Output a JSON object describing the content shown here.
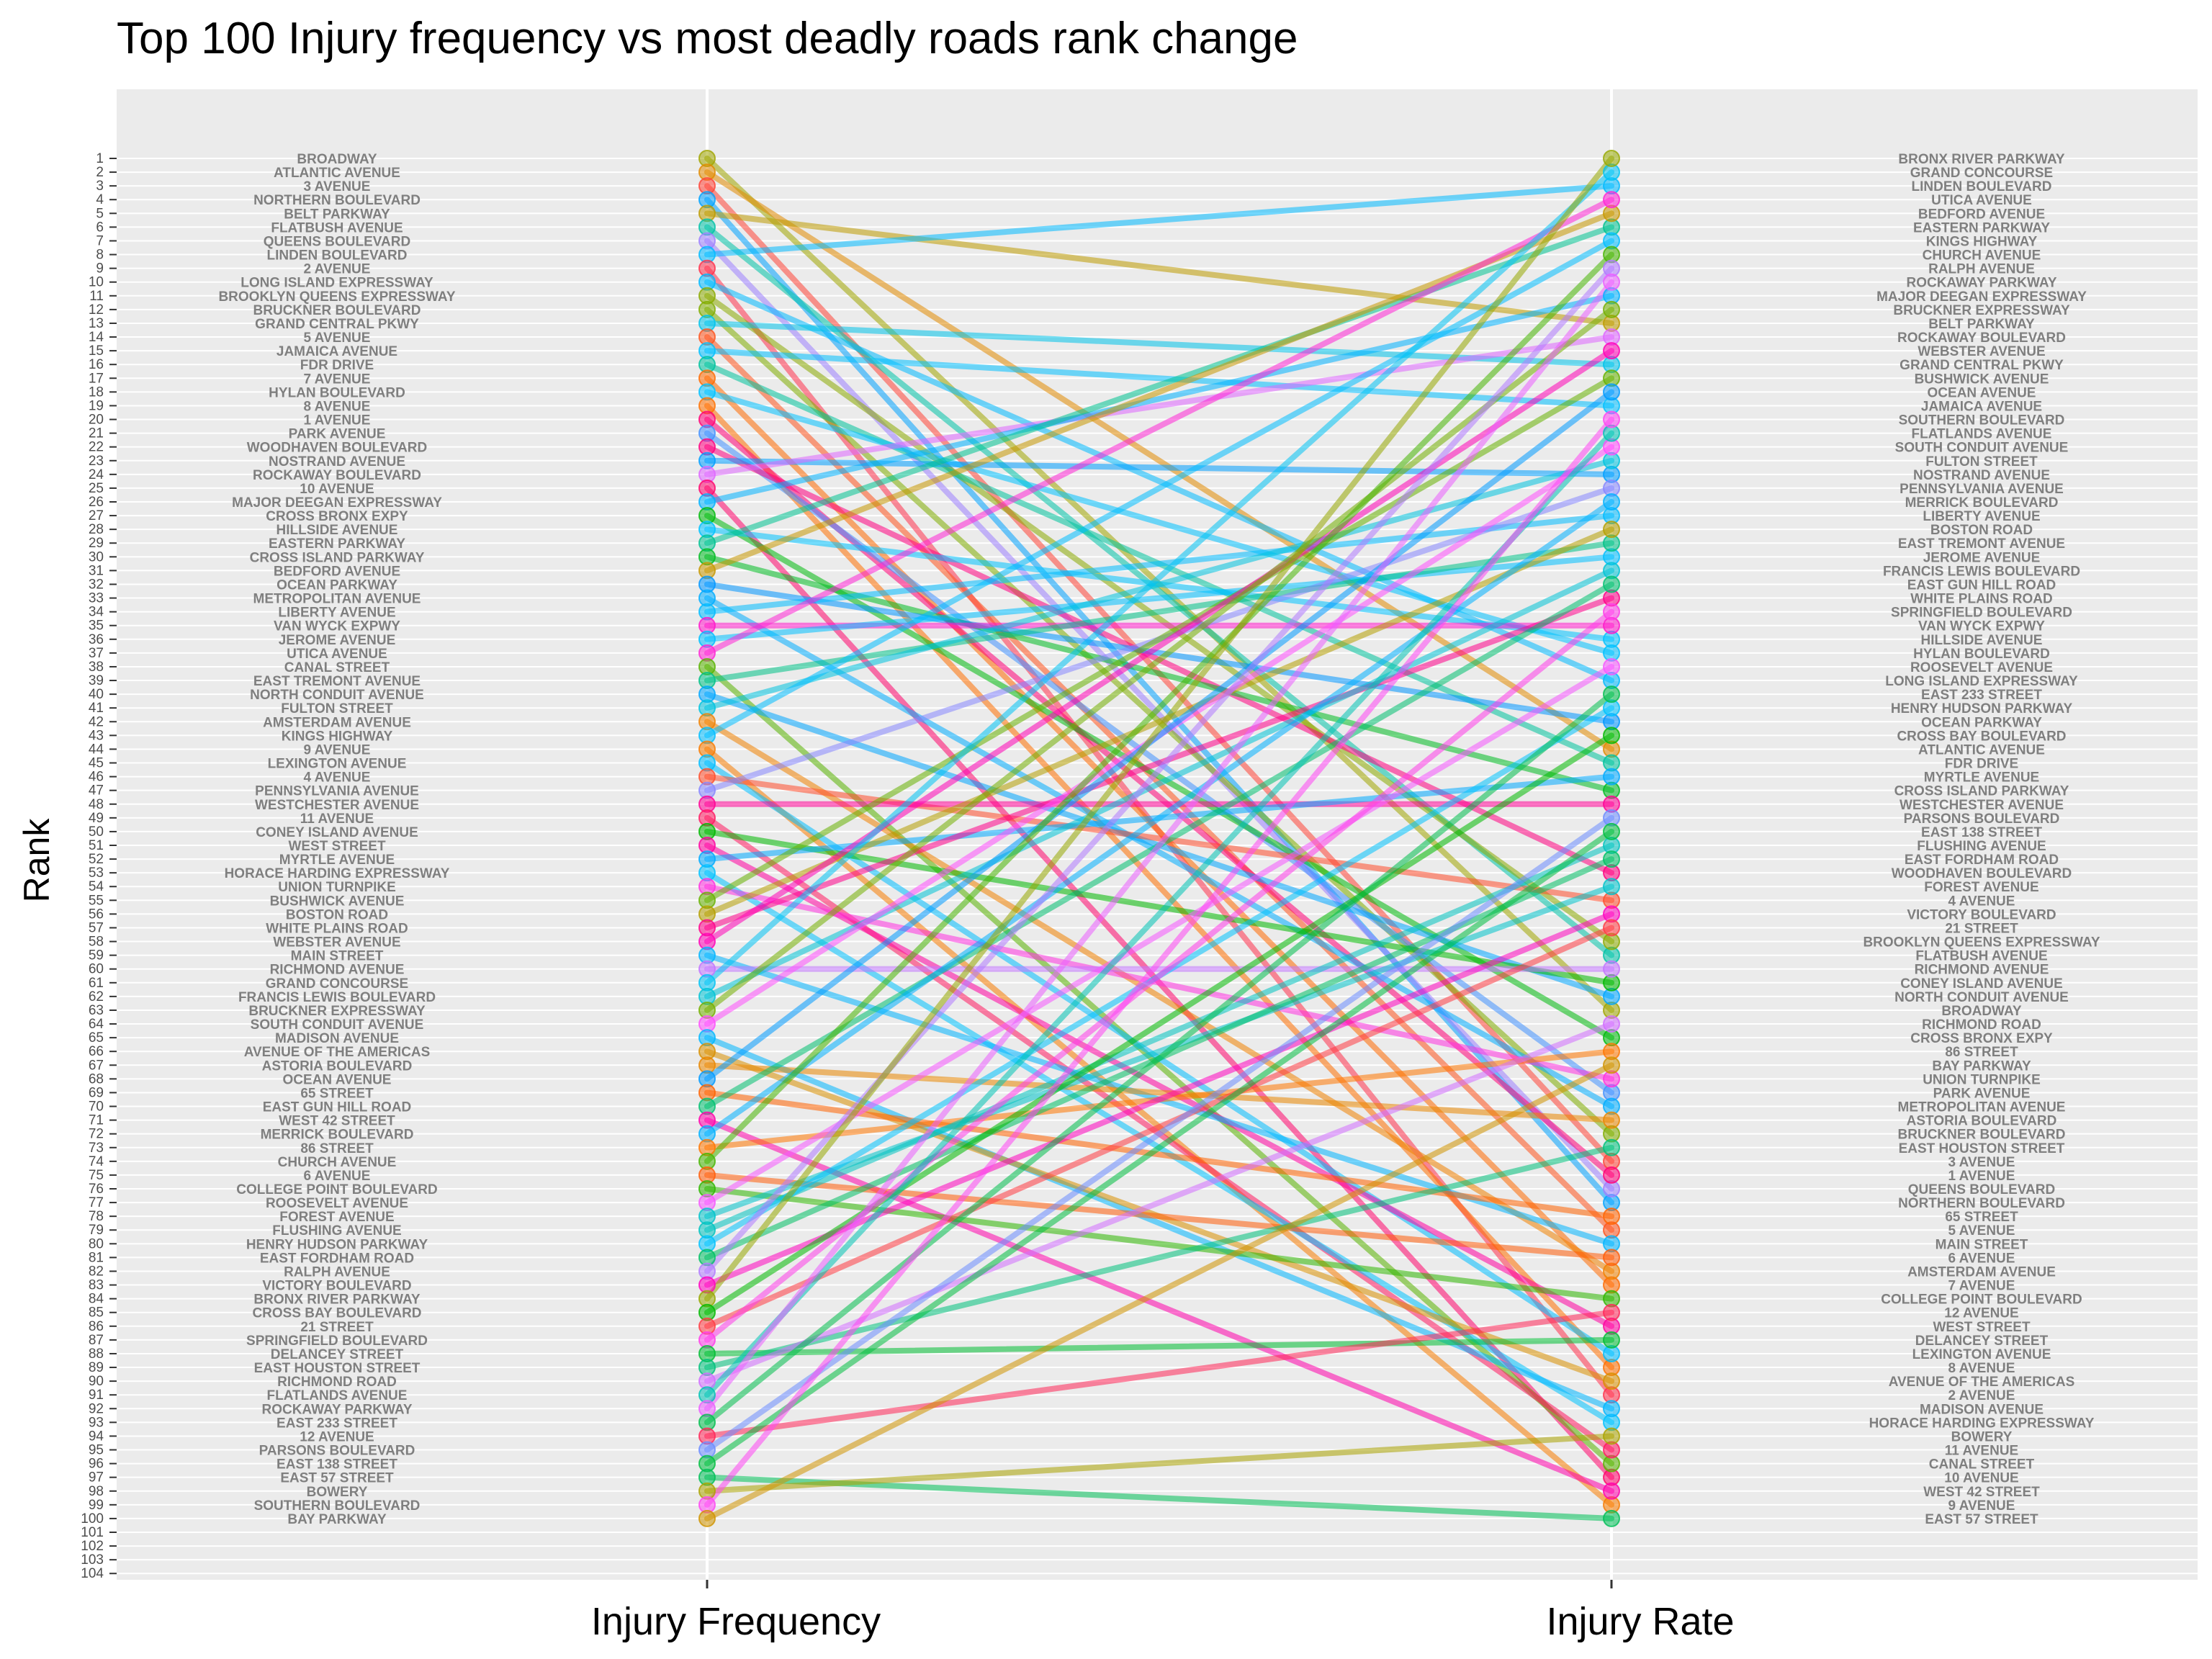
{
  "chart_data": {
    "type": "line",
    "title": "Top 100 Injury frequency vs most deadly roads rank change",
    "xlabel": "",
    "ylabel": "Rank",
    "categories": [
      "Injury Frequency",
      "Injury Rate"
    ],
    "y_ticks": [
      1,
      2,
      3,
      4,
      5,
      6,
      7,
      8,
      9,
      10,
      11,
      12,
      13,
      14,
      15,
      16,
      17,
      18,
      19,
      20,
      21,
      22,
      23,
      24,
      25,
      26,
      27,
      28,
      29,
      30,
      31,
      32,
      33,
      34,
      35,
      36,
      37,
      38,
      39,
      40,
      41,
      42,
      43,
      44,
      45,
      46,
      47,
      48,
      49,
      50,
      51,
      52,
      53,
      54,
      55,
      56,
      57,
      58,
      59,
      60,
      61,
      62,
      63,
      64,
      65,
      66,
      67,
      68,
      69,
      70,
      71,
      72,
      73,
      74,
      75,
      76,
      77,
      78,
      79,
      80,
      81,
      82,
      83,
      84,
      85,
      86,
      87,
      88,
      89,
      90,
      91,
      92,
      93,
      94,
      95,
      96,
      97,
      98,
      99,
      100,
      101,
      102,
      103,
      104
    ],
    "ylim": [
      104,
      1
    ],
    "y_reversed": true,
    "legend": "none",
    "grid": true,
    "left_labels": [
      "BROADWAY",
      "ATLANTIC AVENUE",
      "3 AVENUE",
      "NORTHERN BOULEVARD",
      "BELT PARKWAY",
      "FLATBUSH AVENUE",
      "QUEENS BOULEVARD",
      "LINDEN BOULEVARD",
      "2 AVENUE",
      "LONG ISLAND EXPRESSWAY",
      "BROOKLYN QUEENS EXPRESSWAY",
      "BRUCKNER BOULEVARD",
      "GRAND CENTRAL PKWY",
      "5 AVENUE",
      "JAMAICA AVENUE",
      "FDR DRIVE",
      "7 AVENUE",
      "HYLAN BOULEVARD",
      "8 AVENUE",
      "1 AVENUE",
      "PARK AVENUE",
      "WOODHAVEN BOULEVARD",
      "NOSTRAND AVENUE",
      "ROCKAWAY BOULEVARD",
      "10 AVENUE",
      "MAJOR DEEGAN EXPRESSWAY",
      "CROSS BRONX EXPY",
      "HILLSIDE AVENUE",
      "EASTERN PARKWAY",
      "CROSS ISLAND PARKWAY",
      "BEDFORD AVENUE",
      "OCEAN PARKWAY",
      "METROPOLITAN AVENUE",
      "LIBERTY AVENUE",
      "VAN WYCK EXPWY",
      "JEROME AVENUE",
      "UTICA AVENUE",
      "CANAL STREET",
      "EAST TREMONT AVENUE",
      "NORTH CONDUIT AVENUE",
      "FULTON STREET",
      "AMSTERDAM AVENUE",
      "KINGS HIGHWAY",
      "9 AVENUE",
      "LEXINGTON AVENUE",
      "4 AVENUE",
      "PENNSYLVANIA AVENUE",
      "WESTCHESTER AVENUE",
      "11 AVENUE",
      "CONEY ISLAND AVENUE",
      "WEST STREET",
      "MYRTLE AVENUE",
      "HORACE HARDING EXPRESSWAY",
      "UNION TURNPIKE",
      "BUSHWICK AVENUE",
      "BOSTON ROAD",
      "WHITE PLAINS ROAD",
      "WEBSTER AVENUE",
      "MAIN STREET",
      "RICHMOND AVENUE",
      "GRAND CONCOURSE",
      "FRANCIS LEWIS BOULEVARD",
      "BRUCKNER EXPRESSWAY",
      "SOUTH CONDUIT AVENUE",
      "MADISON AVENUE",
      "AVENUE OF THE AMERICAS",
      "ASTORIA BOULEVARD",
      "OCEAN AVENUE",
      "65 STREET",
      "EAST GUN HILL ROAD",
      "WEST 42 STREET",
      "MERRICK BOULEVARD",
      "86 STREET",
      "CHURCH AVENUE",
      "6 AVENUE",
      "COLLEGE POINT BOULEVARD",
      "ROOSEVELT AVENUE",
      "FOREST AVENUE",
      "FLUSHING AVENUE",
      "HENRY HUDSON PARKWAY",
      "EAST FORDHAM ROAD",
      "RALPH AVENUE",
      "VICTORY BOULEVARD",
      "BRONX RIVER PARKWAY",
      "CROSS BAY BOULEVARD",
      "21 STREET",
      "SPRINGFIELD BOULEVARD",
      "DELANCEY STREET",
      "EAST HOUSTON STREET",
      "RICHMOND ROAD",
      "FLATLANDS AVENUE",
      "ROCKAWAY PARKWAY",
      "EAST 233 STREET",
      "12 AVENUE",
      "PARSONS BOULEVARD",
      "EAST 138 STREET",
      "EAST 57 STREET",
      "BOWERY",
      "SOUTHERN BOULEVARD",
      "BAY PARKWAY"
    ],
    "right_labels": [
      "BRONX RIVER PARKWAY",
      "GRAND CONCOURSE",
      "LINDEN BOULEVARD",
      "UTICA AVENUE",
      "BEDFORD AVENUE",
      "EASTERN PARKWAY",
      "KINGS HIGHWAY",
      "CHURCH AVENUE",
      "RALPH AVENUE",
      "ROCKAWAY PARKWAY",
      "MAJOR DEEGAN EXPRESSWAY",
      "BRUCKNER EXPRESSWAY",
      "BELT PARKWAY",
      "ROCKAWAY BOULEVARD",
      "WEBSTER AVENUE",
      "GRAND CENTRAL PKWY",
      "BUSHWICK AVENUE",
      "OCEAN AVENUE",
      "JAMAICA AVENUE",
      "SOUTHERN BOULEVARD",
      "FLATLANDS AVENUE",
      "SOUTH CONDUIT AVENUE",
      "FULTON STREET",
      "NOSTRAND AVENUE",
      "PENNSYLVANIA AVENUE",
      "MERRICK BOULEVARD",
      "LIBERTY AVENUE",
      "BOSTON ROAD",
      "EAST TREMONT AVENUE",
      "JEROME AVENUE",
      "FRANCIS LEWIS BOULEVARD",
      "EAST GUN HILL ROAD",
      "WHITE PLAINS ROAD",
      "SPRINGFIELD BOULEVARD",
      "VAN WYCK EXPWY",
      "HILLSIDE AVENUE",
      "HYLAN BOULEVARD",
      "ROOSEVELT AVENUE",
      "LONG ISLAND EXPRESSWAY",
      "EAST 233 STREET",
      "HENRY HUDSON PARKWAY",
      "OCEAN PARKWAY",
      "CROSS BAY BOULEVARD",
      "ATLANTIC AVENUE",
      "FDR DRIVE",
      "MYRTLE AVENUE",
      "CROSS ISLAND PARKWAY",
      "WESTCHESTER AVENUE",
      "PARSONS BOULEVARD",
      "EAST 138 STREET",
      "FLUSHING AVENUE",
      "EAST FORDHAM ROAD",
      "WOODHAVEN BOULEVARD",
      "FOREST AVENUE",
      "4 AVENUE",
      "VICTORY BOULEVARD",
      "21 STREET",
      "BROOKLYN QUEENS EXPRESSWAY",
      "FLATBUSH AVENUE",
      "RICHMOND AVENUE",
      "CONEY ISLAND AVENUE",
      "NORTH CONDUIT AVENUE",
      "BROADWAY",
      "RICHMOND ROAD",
      "CROSS BRONX EXPY",
      "86 STREET",
      "BAY PARKWAY",
      "UNION TURNPIKE",
      "PARK AVENUE",
      "METROPOLITAN AVENUE",
      "ASTORIA BOULEVARD",
      "BRUCKNER BOULEVARD",
      "EAST HOUSTON STREET",
      "3 AVENUE",
      "1 AVENUE",
      "QUEENS BOULEVARD",
      "NORTHERN BOULEVARD",
      "65 STREET",
      "5 AVENUE",
      "MAIN STREET",
      "6 AVENUE",
      "AMSTERDAM AVENUE",
      "7 AVENUE",
      "COLLEGE POINT BOULEVARD",
      "12 AVENUE",
      "WEST STREET",
      "DELANCEY STREET",
      "LEXINGTON AVENUE",
      "8 AVENUE",
      "AVENUE OF THE AMERICAS",
      "2 AVENUE",
      "MADISON AVENUE",
      "HORACE HARDING EXPRESSWAY",
      "BOWERY",
      "11 AVENUE",
      "CANAL STREET",
      "10 AVENUE",
      "WEST 42 STREET",
      "9 AVENUE",
      "EAST 57 STREET"
    ]
  }
}
